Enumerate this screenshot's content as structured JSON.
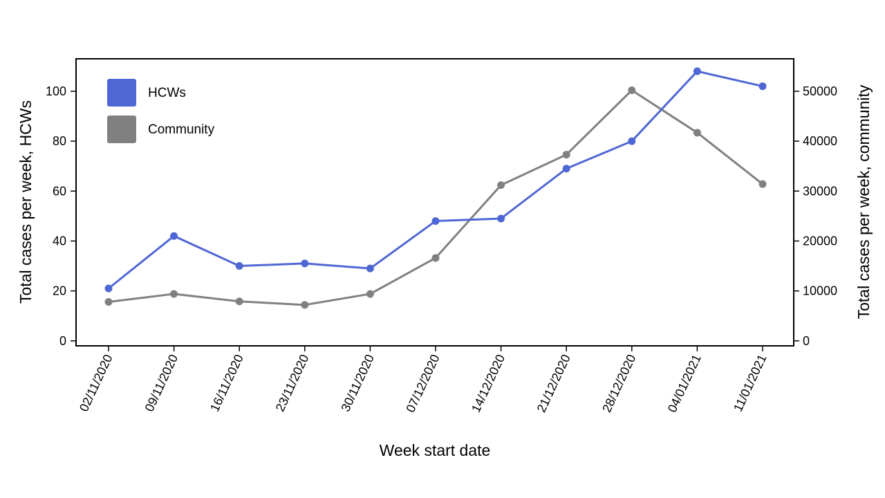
{
  "chart_data": {
    "type": "line",
    "xlabel": "Week start date",
    "ylabel_left": "Total cases per week, HCWs",
    "ylabel_right": "Total cases per week, community",
    "categories": [
      "02/11/2020",
      "09/11/2020",
      "16/11/2020",
      "23/11/2020",
      "30/11/2020",
      "07/12/2020",
      "14/12/2020",
      "21/12/2020",
      "28/12/2020",
      "04/01/2021",
      "11/01/2021"
    ],
    "ylim_left": [
      -2,
      113
    ],
    "ylim_right": [
      -1000,
      56500
    ],
    "yticks_left": [
      0,
      20,
      40,
      60,
      80,
      100
    ],
    "yticks_right": [
      0,
      10000,
      20000,
      30000,
      40000,
      50000
    ],
    "grid": false,
    "legend_position": "top-left",
    "series": [
      {
        "name": "HCWs",
        "axis": "left",
        "color": "#4f67d4",
        "values": [
          21,
          42,
          30,
          31,
          29,
          48,
          49,
          69,
          80,
          108,
          102
        ]
      },
      {
        "name": "Community",
        "axis": "right",
        "color": "#808080",
        "values": [
          7800,
          9400,
          7900,
          7200,
          9400,
          16600,
          31200,
          37300,
          50200,
          41700,
          31400
        ]
      }
    ]
  }
}
